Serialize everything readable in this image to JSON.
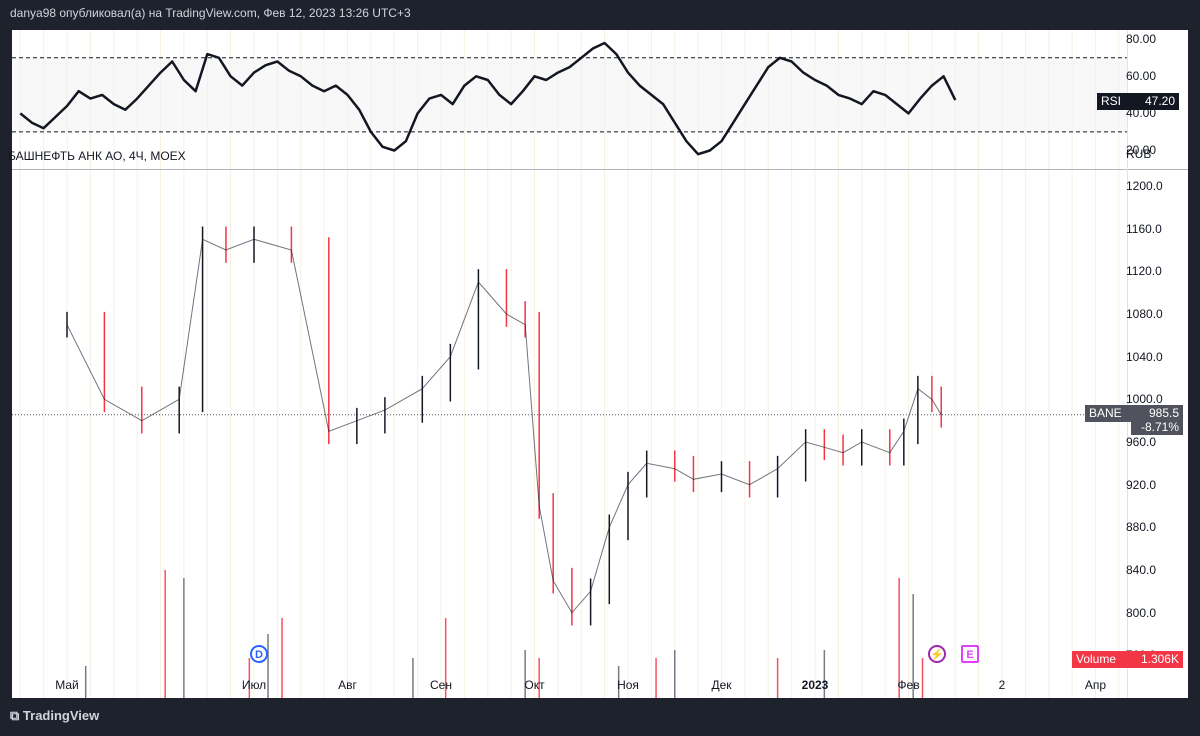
{
  "header": {
    "text": "danya98 опубликовал(а) на TradingView.com, Фев 12, 2023 13:26 UTC+3"
  },
  "footer": {
    "logo": "TradingView"
  },
  "colors": {
    "up": "#131722",
    "down": "#f23645",
    "rsi_line": "#131722",
    "volume_up": "#787b86",
    "volume_down": "#f7525f",
    "grid": "#f7f0e3"
  },
  "icons": {
    "dividend": "D",
    "split": "lightning-icon",
    "earnings": "E"
  },
  "chart_data": [
    {
      "type": "line",
      "name": "RSI",
      "series_label": "RSI",
      "last_value": "47.20",
      "ylim": [
        10,
        85
      ],
      "y_ticks": [
        "80.00",
        "60.00",
        "40.00",
        "20.00"
      ],
      "bands": [
        30,
        70
      ],
      "x_month_index": [
        0.0,
        0.5,
        1.0,
        1.5,
        2.0,
        2.5,
        3.0,
        3.5,
        4.0,
        4.5,
        5.0,
        5.5,
        6.0,
        6.5,
        7.0,
        7.5,
        8.0,
        8.5,
        9.0,
        9.5,
        10.0,
        10.5,
        11.0,
        11.5,
        12.0,
        12.5,
        13.0,
        13.5,
        14.0,
        14.5,
        15.0,
        15.5,
        16.0,
        16.5,
        17.0,
        17.5,
        18.0,
        18.5,
        19.0,
        19.5,
        20.0,
        20.5,
        21.0,
        21.5,
        22.0,
        22.5,
        23.0,
        23.5,
        24.0,
        24.5,
        25.0,
        25.5,
        26.0,
        26.5,
        27.0,
        27.5,
        28.0,
        28.5,
        29.0,
        29.5,
        30.0,
        30.5,
        31.0,
        31.5,
        32.0,
        32.5,
        33.0,
        33.5,
        34.0,
        34.5,
        35.0,
        35.5,
        36.0,
        36.5,
        37.0,
        37.5,
        38.0,
        38.5,
        39.0,
        39.5,
        40.0
      ],
      "values": [
        40,
        35,
        32,
        38,
        44,
        52,
        48,
        50,
        45,
        42,
        48,
        55,
        62,
        68,
        58,
        52,
        72,
        70,
        60,
        55,
        62,
        66,
        68,
        63,
        60,
        55,
        52,
        55,
        50,
        42,
        30,
        22,
        20,
        25,
        40,
        48,
        50,
        45,
        55,
        60,
        58,
        50,
        45,
        52,
        60,
        58,
        62,
        65,
        70,
        75,
        78,
        72,
        62,
        55,
        50,
        45,
        35,
        25,
        18,
        20,
        25,
        35,
        45,
        55,
        65,
        70,
        68,
        62,
        58,
        55,
        50,
        48,
        45,
        52,
        50,
        45,
        40,
        48,
        55,
        60,
        47.2
      ]
    },
    {
      "type": "candlestick",
      "name": "БАШНЕФТЬ АНК АО, 4Ч, MOEX",
      "symbol": "BANE",
      "currency": "RUB",
      "last_price": "985.5",
      "change": "-8.71%",
      "ylim": [
        720,
        1215
      ],
      "y_ticks": [
        "1200.0",
        "1160.0",
        "1120.0",
        "1080.0",
        "1040.0",
        "1000.0",
        "960.0",
        "920.0",
        "880.0",
        "840.0",
        "800.0",
        "760.0"
      ],
      "x_ticks": [
        {
          "label": "Май",
          "month_index": 0,
          "bold": false
        },
        {
          "label": "Июл",
          "month_index": 2,
          "bold": false
        },
        {
          "label": "Авг",
          "month_index": 3,
          "bold": false
        },
        {
          "label": "Сен",
          "month_index": 4,
          "bold": false
        },
        {
          "label": "Окт",
          "month_index": 5,
          "bold": false
        },
        {
          "label": "Ноя",
          "month_index": 6,
          "bold": false
        },
        {
          "label": "Дек",
          "month_index": 7,
          "bold": false
        },
        {
          "label": "2023",
          "month_index": 8,
          "bold": true
        },
        {
          "label": "Фев",
          "month_index": 9,
          "bold": false
        },
        {
          "label": "2",
          "month_index": 10,
          "bold": false
        },
        {
          "label": "Апр",
          "month_index": 11,
          "bold": false
        }
      ],
      "x_month_index": [
        0.0,
        0.4,
        0.8,
        1.2,
        1.45,
        1.7,
        2.0,
        2.4,
        2.8,
        3.1,
        3.4,
        3.8,
        4.1,
        4.4,
        4.7,
        4.9,
        5.05,
        5.2,
        5.4,
        5.6,
        5.8,
        6.0,
        6.2,
        6.5,
        6.7,
        7.0,
        7.3,
        7.6,
        7.9,
        8.1,
        8.3,
        8.5,
        8.8,
        8.95,
        9.1,
        9.25,
        9.35
      ],
      "close": [
        1070,
        1000,
        980,
        1000,
        1150,
        1140,
        1150,
        1140,
        970,
        980,
        990,
        1010,
        1040,
        1110,
        1080,
        1070,
        900,
        830,
        800,
        820,
        880,
        920,
        940,
        935,
        925,
        930,
        920,
        935,
        960,
        955,
        950,
        960,
        950,
        970,
        1010,
        1000,
        985.5
      ]
    },
    {
      "type": "bar",
      "name": "Volume",
      "series_label": "Volume",
      "last_value": "1.306K",
      "x_month_index": [
        0.2,
        1.05,
        1.25,
        1.95,
        2.15,
        2.3,
        3.7,
        4.05,
        4.9,
        5.05,
        5.9,
        6.3,
        6.5,
        7.6,
        8.1,
        8.9,
        9.05,
        9.15
      ],
      "values": [
        0.4,
        1.6,
        1.5,
        0.5,
        0.8,
        1.0,
        0.5,
        1.0,
        0.6,
        0.5,
        0.4,
        0.5,
        0.6,
        0.5,
        0.6,
        1.5,
        1.3,
        0.5
      ]
    }
  ]
}
